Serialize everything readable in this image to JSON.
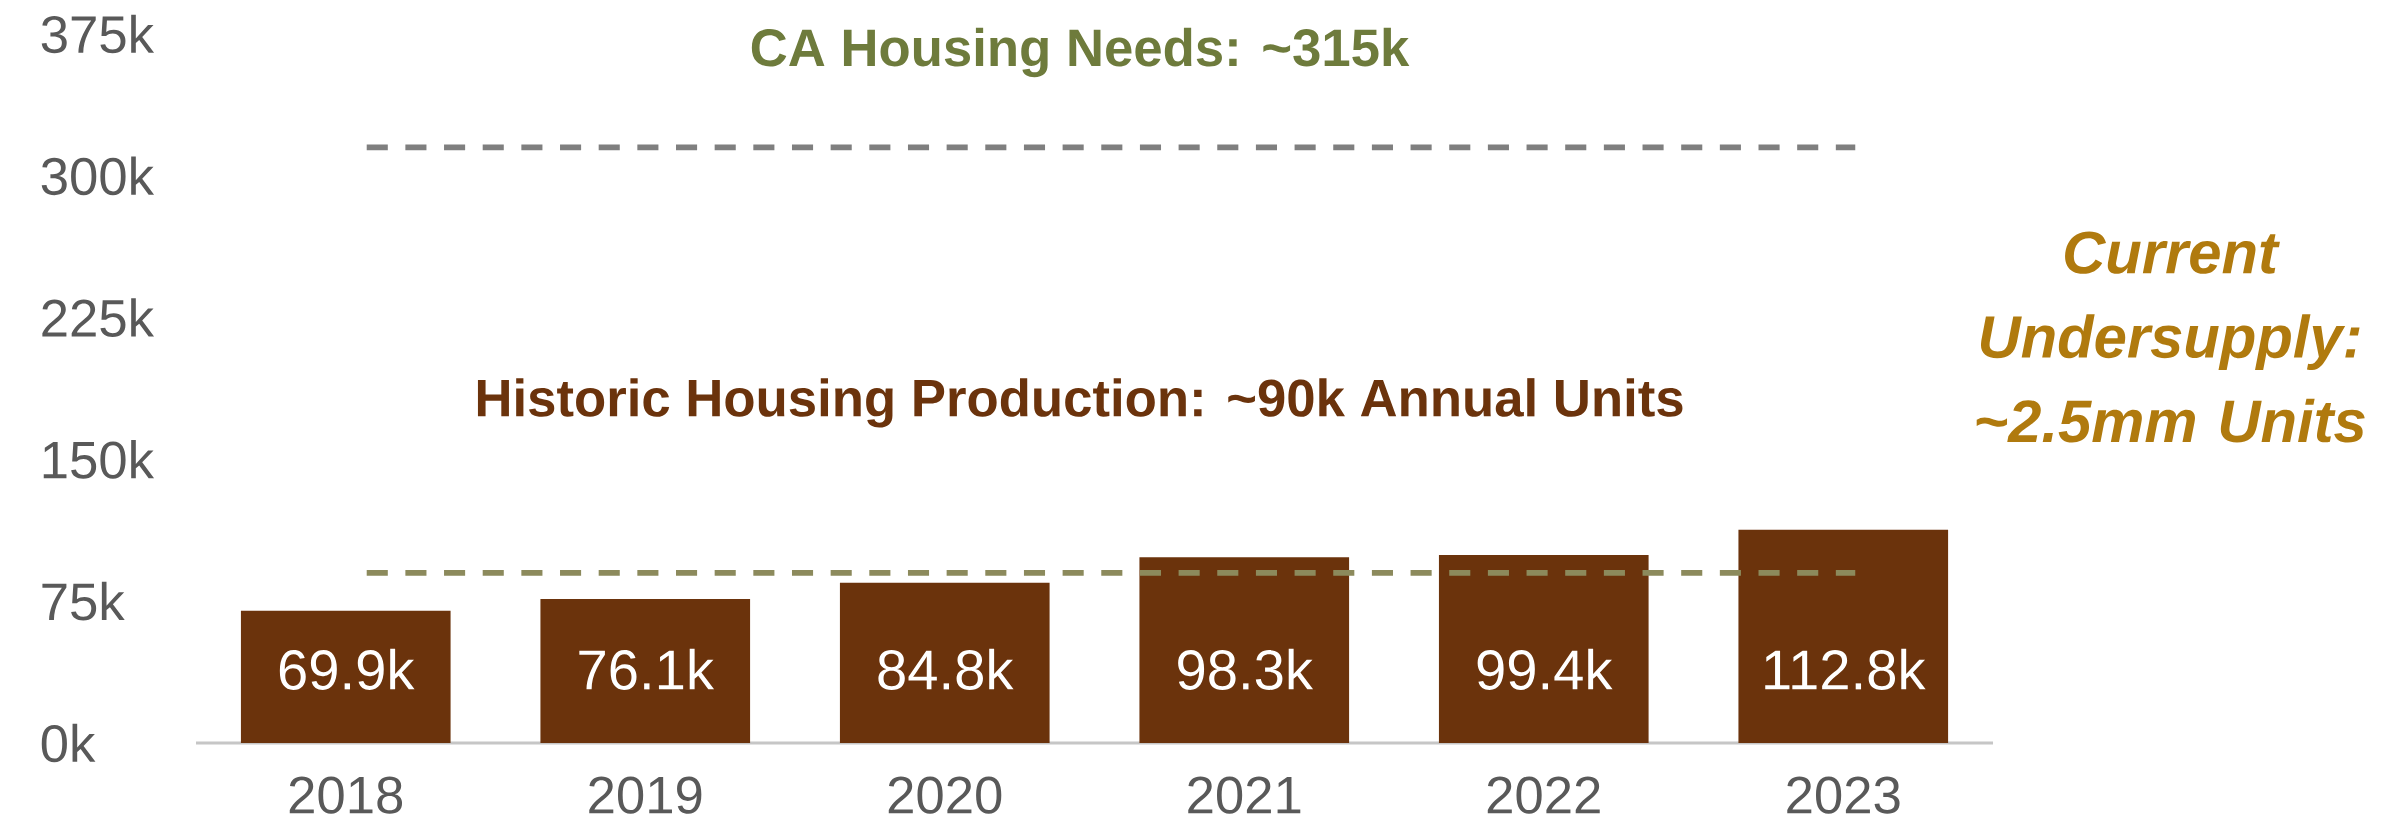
{
  "chart_data": {
    "type": "bar",
    "categories": [
      "2018",
      "2019",
      "2020",
      "2021",
      "2022",
      "2023"
    ],
    "values": [
      69.9,
      76.1,
      84.8,
      98.3,
      99.4,
      112.8
    ],
    "value_labels": [
      "69.9k",
      "76.1k",
      "84.8k",
      "98.3k",
      "99.4k",
      "112.8k"
    ],
    "color": "#6b330c",
    "ylim": [
      0,
      375
    ],
    "yticks": [
      {
        "value": 0,
        "label": "0k"
      },
      {
        "value": 75,
        "label": "75k"
      },
      {
        "value": 150,
        "label": "150k"
      },
      {
        "value": 225,
        "label": "225k"
      },
      {
        "value": 300,
        "label": "300k"
      },
      {
        "value": 375,
        "label": "375k"
      }
    ],
    "ref_lines": [
      {
        "axis": "y",
        "value": 315,
        "label": "CA Housing Needs: ~315k",
        "color": "#7f7f7f",
        "line_style": "dashed"
      },
      {
        "axis": "y",
        "value": 90,
        "label": "Historic Housing Production: ~90k Annual Units",
        "color": "#8c8a5c",
        "line_style": "dashed"
      }
    ],
    "annotations": [
      "Current Undersupply: ~2.5mm Units"
    ],
    "marker": "none"
  }
}
